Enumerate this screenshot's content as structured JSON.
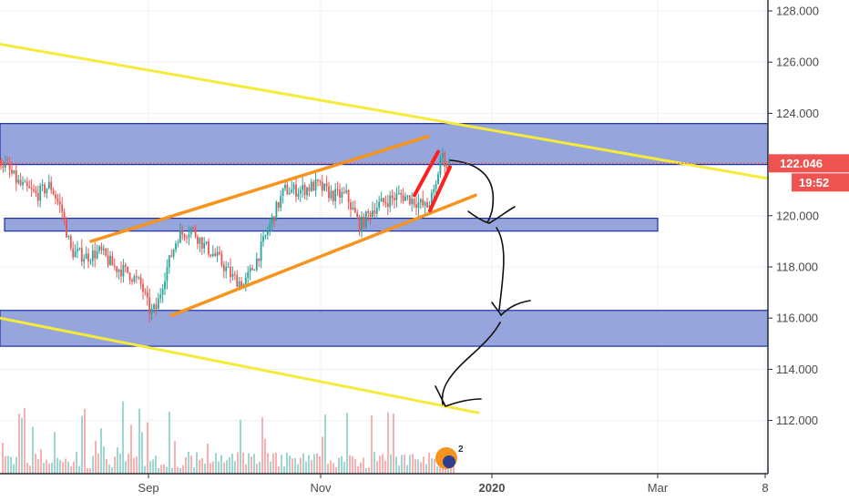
{
  "chart_data": {
    "type": "candlestick",
    "y_axis": {
      "ticks": [
        "128.000",
        "126.000",
        "124.000",
        "120.000",
        "118.000",
        "116.000",
        "114.000",
        "112.000"
      ],
      "range": [
        111.0,
        128.6
      ],
      "side": "right"
    },
    "x_axis": {
      "ticks": [
        "Sep",
        "Nov",
        "2020",
        "Mar",
        "8"
      ]
    },
    "last_price": {
      "value": "122.046",
      "countdown": "19:52",
      "color": "#ef5350"
    },
    "price_path": [
      [
        0,
        122.2
      ],
      [
        22,
        121.2
      ],
      [
        40,
        120.8
      ],
      [
        55,
        121.2
      ],
      [
        68,
        120.2
      ],
      [
        78,
        118.6
      ],
      [
        95,
        118.4
      ],
      [
        110,
        118.6
      ],
      [
        125,
        118.0
      ],
      [
        140,
        117.8
      ],
      [
        155,
        117.3
      ],
      [
        165,
        116.2
      ],
      [
        172,
        116.4
      ],
      [
        180,
        117.6
      ],
      [
        195,
        119.2
      ],
      [
        210,
        119.5
      ],
      [
        225,
        118.8
      ],
      [
        240,
        118.3
      ],
      [
        255,
        117.6
      ],
      [
        268,
        117.3
      ],
      [
        282,
        118.3
      ],
      [
        298,
        119.8
      ],
      [
        312,
        121.0
      ],
      [
        330,
        121.0
      ],
      [
        348,
        121.2
      ],
      [
        365,
        120.8
      ],
      [
        380,
        120.8
      ],
      [
        395,
        119.6
      ],
      [
        410,
        120.3
      ],
      [
        425,
        120.6
      ],
      [
        440,
        120.8
      ],
      [
        455,
        120.6
      ],
      [
        468,
        120.3
      ],
      [
        478,
        121.0
      ],
      [
        484,
        122.4
      ],
      [
        490,
        122.0
      ],
      [
        493,
        122.0
      ]
    ],
    "volume": "Volume histogram (unlabeled)",
    "volume_colors": {
      "up": "#26a69a",
      "down": "#ef5350"
    },
    "zones": [
      {
        "y_top": 123.6,
        "y_bottom": 122.0,
        "x_end": "full",
        "color": "#8899d6"
      },
      {
        "y_top": 119.9,
        "y_bottom": 119.4,
        "x_end": 722,
        "color": "#8899d6"
      },
      {
        "y_top": 116.3,
        "y_bottom": 114.9,
        "x_end": "full",
        "color": "#8899d6"
      }
    ],
    "trendlines": [
      {
        "color": "#f5eb3b",
        "points": [
          [
            0,
            126.7
          ],
          [
            932,
            120.9
          ]
        ]
      },
      {
        "color": "#f5eb3b",
        "points": [
          [
            0,
            116.0
          ],
          [
            525,
            112.3
          ]
        ]
      },
      {
        "color": "#f7941d",
        "points": [
          [
            100,
            119.0
          ],
          [
            470,
            123.1
          ]
        ]
      },
      {
        "color": "#f7941d",
        "points": [
          [
            188,
            116.1
          ],
          [
            522,
            120.8
          ]
        ]
      },
      {
        "color": "#ff1f1f",
        "points": [
          [
            455,
            120.8
          ],
          [
            481,
            122.5
          ]
        ]
      },
      {
        "color": "#ff1f1f",
        "points": [
          [
            472,
            120.2
          ],
          [
            494,
            121.9
          ]
        ]
      }
    ],
    "projection_path_color": "#111111",
    "grid": true
  }
}
